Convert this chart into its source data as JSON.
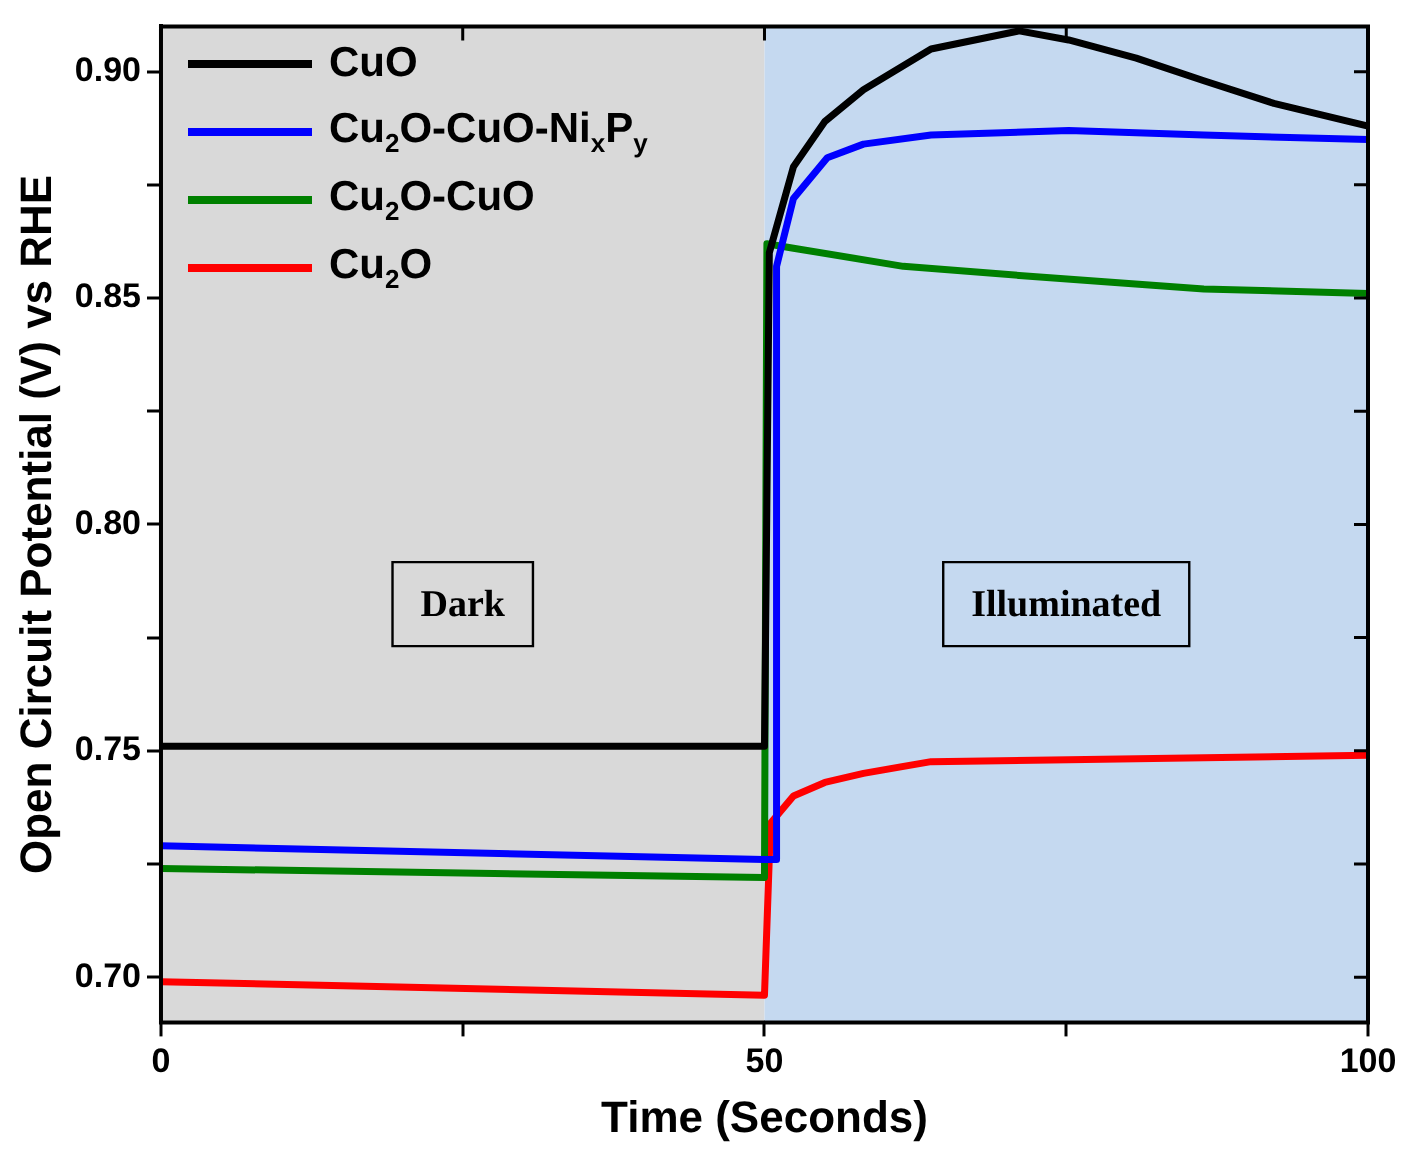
{
  "chart_data": {
    "type": "line",
    "xlabel": "Time (Seconds)",
    "ylabel": "Open Circuit Potential (V) vs RHE",
    "xlim": [
      0,
      100
    ],
    "xticks": [
      0,
      {
        "value": 25,
        "label": null
      },
      50,
      {
        "value": 75,
        "label": null
      },
      100
    ],
    "ylim": [
      0.69,
      0.91
    ],
    "yticks": [
      {
        "value": 0.7,
        "label": "0.70"
      },
      {
        "value": 0.725,
        "label": null
      },
      0.75,
      {
        "value": 0.775,
        "label": null
      },
      {
        "value": 0.8,
        "label": "0.80"
      },
      {
        "value": 0.825,
        "label": null
      },
      0.85,
      {
        "value": 0.875,
        "label": null
      },
      {
        "value": 0.9,
        "label": "0.90"
      }
    ],
    "grid": false,
    "legend": "top left",
    "marker": "none",
    "line_style": "solid",
    "bands": [
      {
        "axis": "x",
        "from": 0,
        "to": 50,
        "label": "Dark",
        "color": "#d9d9d9"
      },
      {
        "axis": "x",
        "from": 50,
        "to": 100,
        "label": "Illuminated",
        "color": "#c5d9f0"
      }
    ],
    "series": [
      {
        "name": "CuO",
        "color": "#000000",
        "x": [
          0,
          25,
          50,
          50.4,
          52.4,
          55,
          58.2,
          63.8,
          71.1,
          75.2,
          80.8,
          86.4,
          92.2,
          100
        ],
        "values": [
          0.751,
          0.751,
          0.751,
          0.86,
          0.879,
          0.889,
          0.896,
          0.905,
          0.909,
          0.907,
          0.903,
          0.898,
          0.893,
          0.888
        ]
      },
      {
        "name": "Cu$_{2}$O-CuO-Ni$_{x}$P$_{y}$",
        "color": "#0000ff",
        "x": [
          0,
          50,
          51,
          51,
          52.4,
          55.2,
          58.2,
          63.8,
          75.2,
          86.4,
          100
        ],
        "values": [
          0.729,
          0.726,
          0.726,
          0.857,
          0.872,
          0.881,
          0.884,
          0.886,
          0.887,
          0.886,
          0.885
        ]
      },
      {
        "name": "Cu$_{2}$O-CuO",
        "color": "#008000",
        "x": [
          0,
          50,
          50.2,
          52.4,
          61.5,
          71.1,
          86.4,
          100
        ],
        "values": [
          0.724,
          0.722,
          0.862,
          0.861,
          0.857,
          0.855,
          0.852,
          0.851
        ]
      },
      {
        "name": "Cu$_{2}$O",
        "color": "#ff0000",
        "x": [
          0,
          50,
          50.5,
          52.4,
          55,
          58.2,
          63.8,
          75.2,
          100
        ],
        "values": [
          0.699,
          0.696,
          0.734,
          0.74,
          0.743,
          0.745,
          0.7476,
          0.748,
          0.749
        ]
      }
    ]
  }
}
